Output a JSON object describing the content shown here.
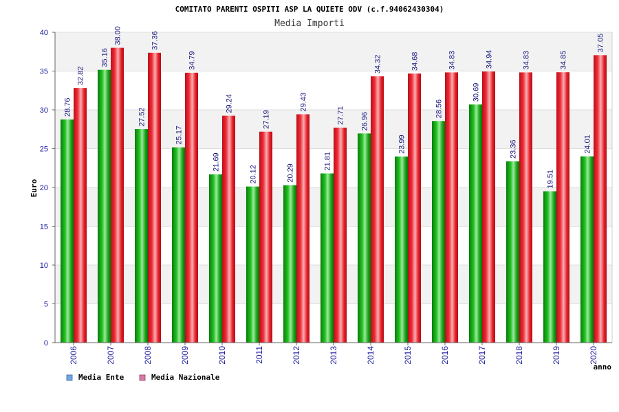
{
  "chart_data": {
    "type": "bar",
    "title": "COMITATO PARENTI OSPITI ASP LA QUIETE ODV (c.f.94062430304)",
    "subtitle": "Media Importi",
    "xlabel": "anno",
    "ylabel": "Euro",
    "ylim": [
      0,
      40
    ],
    "yticks": [
      0,
      5,
      10,
      15,
      20,
      25,
      30,
      35,
      40
    ],
    "grid": true,
    "legend_position": "bottom-left",
    "categories": [
      "2006",
      "2007",
      "2008",
      "2009",
      "2010",
      "2011",
      "2012",
      "2013",
      "2014",
      "2015",
      "2016",
      "2017",
      "2018",
      "2019",
      "2020"
    ],
    "series": [
      {
        "name": "Media Ente",
        "legend_color": "#6fa8e6",
        "bar_color": "#14a814",
        "values": [
          28.76,
          35.16,
          27.52,
          25.17,
          21.69,
          20.12,
          20.29,
          21.81,
          26.96,
          23.99,
          28.56,
          30.69,
          23.36,
          19.51,
          24.01
        ],
        "labels": [
          "28.76",
          "35.16",
          "27.52",
          "25.17",
          "21.69",
          "20.12",
          "20.29",
          "21.81",
          "26.96",
          "23.99",
          "28.56",
          "30.69",
          "23.36",
          "19.51",
          "24.01"
        ]
      },
      {
        "name": "Media Nazionale",
        "legend_color": "#d97aa6",
        "bar_color": "#e8202a",
        "values": [
          32.82,
          38.0,
          37.36,
          34.79,
          29.24,
          27.19,
          29.43,
          27.71,
          34.32,
          34.68,
          34.83,
          34.94,
          34.83,
          34.85,
          37.05
        ],
        "labels": [
          "32.82",
          "38.00",
          "37.36",
          "34.79",
          "29.24",
          "27.19",
          "29.43",
          "27.71",
          "34.32",
          "34.68",
          "34.83",
          "34.94",
          "34.83",
          "34.85",
          "37.05"
        ]
      }
    ]
  }
}
